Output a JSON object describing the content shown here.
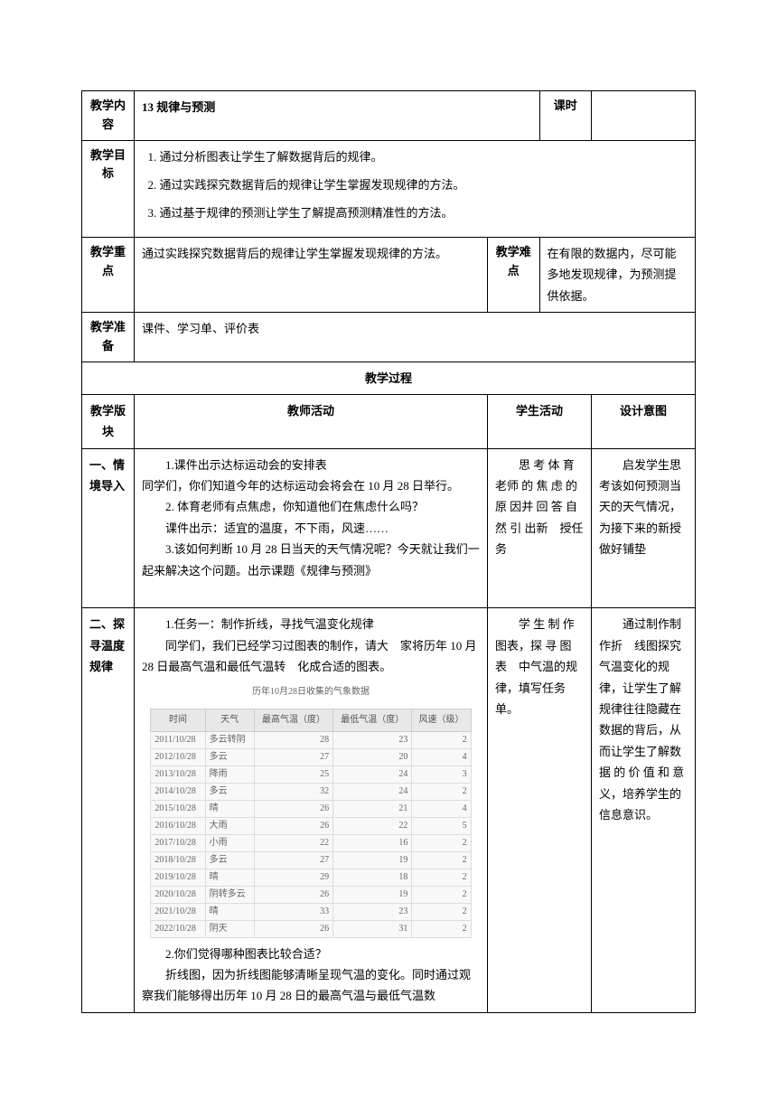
{
  "meta": {
    "labels": {
      "content": "教学内容",
      "period": "课时",
      "goals": "教学目标",
      "keypoint": "教学重点",
      "difficulty": "教学难点",
      "prep": "教学准备",
      "process": "教学过程"
    },
    "title": "13 规律与预测"
  },
  "goals": {
    "item1": "通过分析图表让学生了解数据背后的规律。",
    "item2": "通过实践探究数据背后的规律让学生掌握发现规律的方法。",
    "item3": "通过基于规律的预测让学生了解提高预测精准性的方法。"
  },
  "keypoint": "通过实践探究数据背后的规律让学生掌握发现规律的方法。",
  "difficulty": "在有限的数据内，尽可能多地发现规律，为预测提供依据。",
  "prep": "课件、学习单、评价表",
  "process_header": {
    "c1": "教学版块",
    "c2": "教师活动",
    "c3": "学生活动",
    "c4": "设计意图"
  },
  "section1": {
    "name": "一、情境导入",
    "teacher_p1": "1.课件出示达标运动会的安排表",
    "teacher_p2": "同学们，你们知道今年的达标运动会将会在 10 月 28 日举行。",
    "teacher_p3": "2. 体育老师有点焦虑，你知道他们在焦虑什么吗？",
    "teacher_p4": "课件出示：适宜的温度，不下雨，风速……",
    "teacher_p5": "3.该如何判断 10 月 28 日当天的天气情况呢？今天就让我们一起来解决这个问题。出示课题《规律与预测》",
    "student": "思 考 体 育 老师 的 焦 虑 的 原 因并 回 答 自 然 引 出新　授任务",
    "intent": "启发学生思考该如何预测当天的天气情况，为接下来的新授做好铺垫"
  },
  "section2": {
    "name": "二、探寻温度规律",
    "teacher_p1": "1.任务一：制作折线，寻找气温变化规律",
    "teacher_p2": "同学们，我们已经学习过图表的制作，请大　家将历年 10 月 28 日最高气温和最低气温转　化成合适的图表。",
    "teacher_p3": "2.你们觉得哪种图表比较合适？",
    "teacher_p4": "折线图，因为折线图能够清晰呈现气温的变化。同时通过观察我们能够得出历年 10 月 28 日的最高气温与最低气温数",
    "student": "学 生 制 作 图表，探 寻 图 表　中气温的规　律，填写任务　单。",
    "intent": "通过制作制作折　线图探究气温变化的规律，让学生了解规律往往隐藏在数据的背后，从而让学生了解数据 的 价 值 和 意 义，培养学生的信息意识。"
  },
  "weather_table": {
    "title": "历年10月28日收集的气象数据",
    "headers": {
      "h1": "时间",
      "h2": "天气",
      "h3": "最高气温（度）",
      "h4": "最低气温（度）",
      "h5": "风速（级）"
    },
    "rows": [
      {
        "date": "2011/10/28",
        "weather": "多云转阴",
        "high": "28",
        "low": "23",
        "wind": "2"
      },
      {
        "date": "2012/10/28",
        "weather": "多云",
        "high": "27",
        "low": "20",
        "wind": "4"
      },
      {
        "date": "2013/10/28",
        "weather": "降雨",
        "high": "25",
        "low": "24",
        "wind": "3"
      },
      {
        "date": "2014/10/28",
        "weather": "多云",
        "high": "32",
        "low": "24",
        "wind": "2"
      },
      {
        "date": "2015/10/28",
        "weather": "晴",
        "high": "26",
        "low": "21",
        "wind": "4"
      },
      {
        "date": "2016/10/28",
        "weather": "大雨",
        "high": "26",
        "low": "22",
        "wind": "5"
      },
      {
        "date": "2017/10/28",
        "weather": "小雨",
        "high": "22",
        "low": "16",
        "wind": "2"
      },
      {
        "date": "2018/10/28",
        "weather": "多云",
        "high": "27",
        "low": "19",
        "wind": "2"
      },
      {
        "date": "2019/10/28",
        "weather": "晴",
        "high": "29",
        "low": "18",
        "wind": "2"
      },
      {
        "date": "2020/10/28",
        "weather": "阴转多云",
        "high": "26",
        "low": "19",
        "wind": "2"
      },
      {
        "date": "2021/10/28",
        "weather": "晴",
        "high": "33",
        "low": "23",
        "wind": "2"
      },
      {
        "date": "2022/10/28",
        "weather": "阴天",
        "high": "26",
        "low": "31",
        "wind": "2"
      }
    ]
  }
}
